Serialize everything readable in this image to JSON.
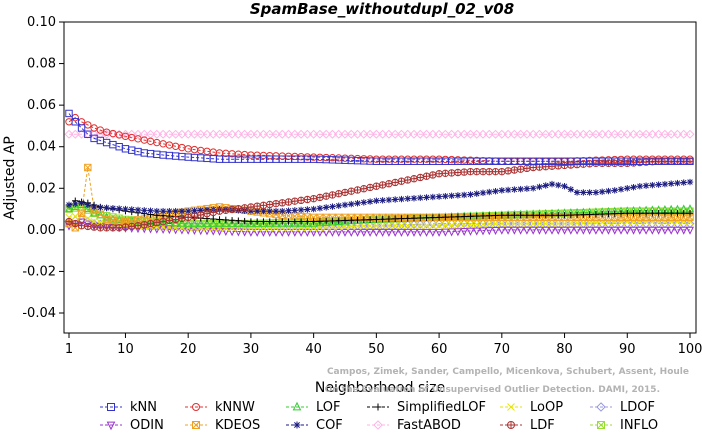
{
  "chart_data": {
    "type": "line",
    "title": "SpamBase_withoutdupl_02_v08",
    "xlabel": "Neighborhood size",
    "ylabel": "Adjusted AP",
    "xlim": [
      1,
      100
    ],
    "ylim": [
      -0.05,
      0.1
    ],
    "xticks": [
      "1",
      "10",
      "20",
      "30",
      "40",
      "50",
      "60",
      "70",
      "80",
      "90",
      "100"
    ],
    "yticks": [
      "-0.04",
      "-0.02",
      "0.00",
      "0.02",
      "0.04",
      "0.06",
      "0.08",
      "0.10"
    ],
    "watermark_line1": "Campos, Zimek, Sander, Campello, Micenkova, Schubert, Assent, Houle",
    "watermark_line2": "On the Evaluation of Unsupervised Outlier Detection. DAMI, 2015.",
    "series": [
      {
        "name": "kNN",
        "color": "#3333cc",
        "marker": "square",
        "points": [
          [
            1,
            0.056
          ],
          [
            2,
            0.052
          ],
          [
            3,
            0.049
          ],
          [
            4,
            0.046
          ],
          [
            5,
            0.044
          ],
          [
            7,
            0.042
          ],
          [
            10,
            0.039
          ],
          [
            13,
            0.037
          ],
          [
            16,
            0.036
          ],
          [
            20,
            0.035
          ],
          [
            25,
            0.034
          ],
          [
            30,
            0.034
          ],
          [
            40,
            0.034
          ],
          [
            50,
            0.033
          ],
          [
            60,
            0.033
          ],
          [
            70,
            0.033
          ],
          [
            80,
            0.033
          ],
          [
            90,
            0.033
          ],
          [
            100,
            0.033
          ]
        ]
      },
      {
        "name": "kNNW",
        "color": "#e03030",
        "marker": "circle",
        "points": [
          [
            1,
            0.052
          ],
          [
            2,
            0.054
          ],
          [
            3,
            0.052
          ],
          [
            5,
            0.049
          ],
          [
            7,
            0.047
          ],
          [
            10,
            0.045
          ],
          [
            15,
            0.042
          ],
          [
            20,
            0.039
          ],
          [
            25,
            0.037
          ],
          [
            30,
            0.036
          ],
          [
            40,
            0.035
          ],
          [
            50,
            0.034
          ],
          [
            60,
            0.034
          ],
          [
            70,
            0.033
          ],
          [
            80,
            0.033
          ],
          [
            90,
            0.034
          ],
          [
            100,
            0.034
          ]
        ]
      },
      {
        "name": "LOF",
        "color": "#33cc33",
        "marker": "triangle",
        "points": [
          [
            1,
            0.01
          ],
          [
            3,
            0.012
          ],
          [
            5,
            0.008
          ],
          [
            8,
            0.005
          ],
          [
            12,
            0.004
          ],
          [
            20,
            0.003
          ],
          [
            30,
            0.003
          ],
          [
            40,
            0.003
          ],
          [
            50,
            0.005
          ],
          [
            60,
            0.006
          ],
          [
            70,
            0.007
          ],
          [
            80,
            0.008
          ],
          [
            90,
            0.009
          ],
          [
            100,
            0.01
          ]
        ]
      },
      {
        "name": "SimplifiedLOF",
        "color": "#000000",
        "marker": "plus",
        "points": [
          [
            1,
            0.012
          ],
          [
            2,
            0.014
          ],
          [
            4,
            0.013
          ],
          [
            6,
            0.011
          ],
          [
            10,
            0.009
          ],
          [
            15,
            0.007
          ],
          [
            20,
            0.006
          ],
          [
            25,
            0.005
          ],
          [
            30,
            0.004
          ],
          [
            40,
            0.004
          ],
          [
            50,
            0.005
          ],
          [
            60,
            0.006
          ],
          [
            70,
            0.007
          ],
          [
            80,
            0.007
          ],
          [
            90,
            0.008
          ],
          [
            100,
            0.008
          ]
        ]
      },
      {
        "name": "LoOP",
        "color": "#e6e600",
        "marker": "x",
        "points": [
          [
            1,
            0.006
          ],
          [
            3,
            0.007
          ],
          [
            5,
            0.004
          ],
          [
            10,
            0.002
          ],
          [
            20,
            0.001
          ],
          [
            30,
            0.001
          ],
          [
            40,
            0.001
          ],
          [
            50,
            0.002
          ],
          [
            60,
            0.002
          ],
          [
            70,
            0.003
          ],
          [
            80,
            0.003
          ],
          [
            90,
            0.004
          ],
          [
            100,
            0.004
          ]
        ]
      },
      {
        "name": "LDOF",
        "color": "#9999dd",
        "marker": "diamond",
        "points": [
          [
            1,
            0.004
          ],
          [
            3,
            0.005
          ],
          [
            5,
            0.003
          ],
          [
            10,
            0.002
          ],
          [
            20,
            0.002
          ],
          [
            30,
            0.002
          ],
          [
            40,
            0.002
          ],
          [
            50,
            0.002
          ],
          [
            60,
            0.003
          ],
          [
            70,
            0.003
          ],
          [
            80,
            0.003
          ],
          [
            90,
            0.003
          ],
          [
            100,
            0.003
          ]
        ]
      },
      {
        "name": "ODIN",
        "color": "#9933cc",
        "marker": "triangle-down",
        "points": [
          [
            1,
            0.002
          ],
          [
            3,
            0.004
          ],
          [
            5,
            0.002
          ],
          [
            10,
            0.001
          ],
          [
            20,
            0.0
          ],
          [
            30,
            -0.001
          ],
          [
            40,
            -0.001
          ],
          [
            50,
            -0.001
          ],
          [
            60,
            -0.001
          ],
          [
            70,
            0.0
          ],
          [
            80,
            0.0
          ],
          [
            90,
            0.0
          ],
          [
            100,
            0.0
          ]
        ]
      },
      {
        "name": "KDEOS",
        "color": "#f0a020",
        "marker": "square-x",
        "points": [
          [
            1,
            0.003
          ],
          [
            2,
            0.001
          ],
          [
            3,
            0.008
          ],
          [
            4,
            0.03
          ],
          [
            5,
            0.01
          ],
          [
            7,
            0.005
          ],
          [
            10,
            0.004
          ],
          [
            15,
            0.006
          ],
          [
            20,
            0.009
          ],
          [
            25,
            0.011
          ],
          [
            30,
            0.009
          ],
          [
            35,
            0.007
          ],
          [
            40,
            0.006
          ],
          [
            50,
            0.006
          ],
          [
            60,
            0.006
          ],
          [
            70,
            0.006
          ],
          [
            80,
            0.006
          ],
          [
            90,
            0.006
          ],
          [
            100,
            0.006
          ]
        ]
      },
      {
        "name": "COF",
        "color": "#1a1a80",
        "marker": "asterisk",
        "points": [
          [
            1,
            0.012
          ],
          [
            3,
            0.013
          ],
          [
            5,
            0.011
          ],
          [
            10,
            0.01
          ],
          [
            15,
            0.009
          ],
          [
            20,
            0.009
          ],
          [
            25,
            0.01
          ],
          [
            30,
            0.009
          ],
          [
            35,
            0.009
          ],
          [
            40,
            0.01
          ],
          [
            45,
            0.012
          ],
          [
            50,
            0.014
          ],
          [
            55,
            0.015
          ],
          [
            60,
            0.016
          ],
          [
            65,
            0.017
          ],
          [
            70,
            0.019
          ],
          [
            75,
            0.02
          ],
          [
            78,
            0.022
          ],
          [
            80,
            0.021
          ],
          [
            82,
            0.018
          ],
          [
            85,
            0.018
          ],
          [
            88,
            0.019
          ],
          [
            92,
            0.021
          ],
          [
            96,
            0.022
          ],
          [
            100,
            0.023
          ]
        ]
      },
      {
        "name": "FastABOD",
        "color": "#ffb3e6",
        "marker": "diamond",
        "points": [
          [
            1,
            0.046
          ],
          [
            10,
            0.046
          ],
          [
            20,
            0.046
          ],
          [
            30,
            0.046
          ],
          [
            40,
            0.046
          ],
          [
            50,
            0.046
          ],
          [
            60,
            0.046
          ],
          [
            70,
            0.046
          ],
          [
            80,
            0.046
          ],
          [
            90,
            0.046
          ],
          [
            100,
            0.046
          ]
        ]
      },
      {
        "name": "LDF",
        "color": "#aa3333",
        "marker": "circle-plus",
        "points": [
          [
            1,
            0.004
          ],
          [
            3,
            0.002
          ],
          [
            6,
            0.001
          ],
          [
            9,
            0.001
          ],
          [
            12,
            0.002
          ],
          [
            20,
            0.006
          ],
          [
            25,
            0.009
          ],
          [
            30,
            0.011
          ],
          [
            35,
            0.013
          ],
          [
            40,
            0.015
          ],
          [
            45,
            0.018
          ],
          [
            50,
            0.021
          ],
          [
            55,
            0.024
          ],
          [
            60,
            0.027
          ],
          [
            65,
            0.028
          ],
          [
            70,
            0.028
          ],
          [
            75,
            0.03
          ],
          [
            80,
            0.031
          ],
          [
            85,
            0.032
          ],
          [
            90,
            0.032
          ],
          [
            95,
            0.033
          ],
          [
            100,
            0.033
          ]
        ]
      },
      {
        "name": "INFLO",
        "color": "#99dd33",
        "marker": "square-x",
        "points": [
          [
            1,
            0.01
          ],
          [
            3,
            0.011
          ],
          [
            5,
            0.008
          ],
          [
            10,
            0.005
          ],
          [
            20,
            0.003
          ],
          [
            30,
            0.003
          ],
          [
            40,
            0.004
          ],
          [
            50,
            0.005
          ],
          [
            60,
            0.006
          ],
          [
            70,
            0.007
          ],
          [
            80,
            0.008
          ],
          [
            90,
            0.009
          ],
          [
            100,
            0.009
          ]
        ]
      }
    ]
  }
}
